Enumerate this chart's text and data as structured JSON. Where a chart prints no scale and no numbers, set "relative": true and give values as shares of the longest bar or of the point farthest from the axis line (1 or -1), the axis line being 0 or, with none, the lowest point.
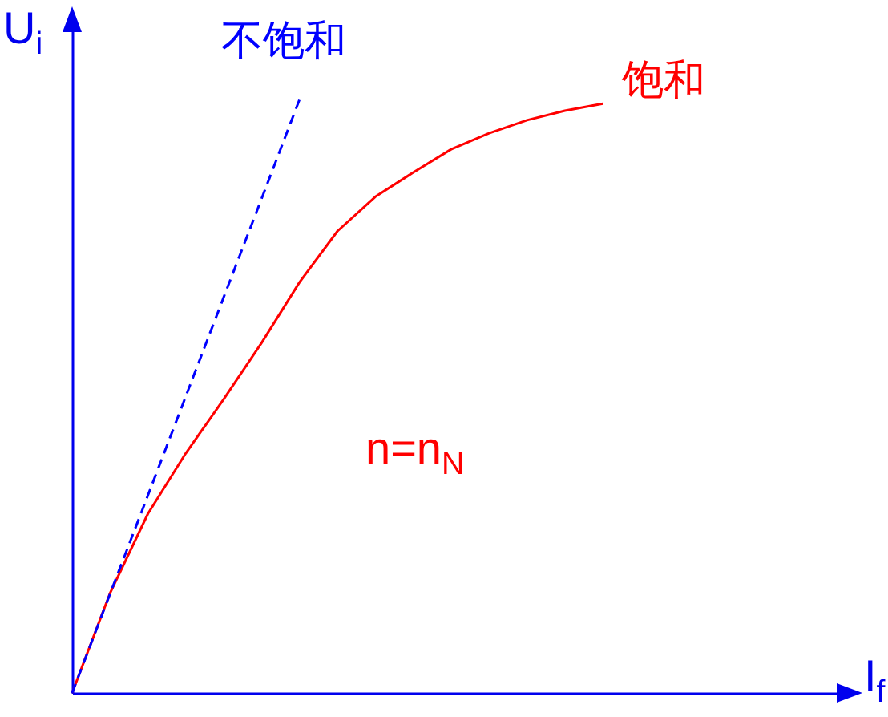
{
  "chart_data": {
    "type": "line",
    "relative": true,
    "ylabel": "U$_{i}$",
    "annotations": [
      "n=n$_{N}$",
      "I$_{f}$"
    ],
    "categories": [
      null,
      null,
      null,
      null,
      null,
      null,
      null,
      null,
      null,
      null,
      null,
      null,
      null,
      null,
      null
    ],
    "series": [
      {
        "name": "饱和",
        "color": "#ff0000",
        "line_style": "solid",
        "values": [
          0,
          0.168,
          0.302,
          0.404,
          0.495,
          0.59,
          0.692,
          0.778,
          0.836,
          0.877,
          0.916,
          0.943,
          0.965,
          0.981,
          0.993
        ]
      },
      {
        "name": "不饱和",
        "color": "#0000ff",
        "line_style": "dashed",
        "values": [
          0,
          0.167,
          0.333,
          0.5,
          0.667,
          0.833,
          1,
          null,
          null,
          null,
          null,
          null,
          null,
          null,
          null
        ]
      }
    ]
  }
}
